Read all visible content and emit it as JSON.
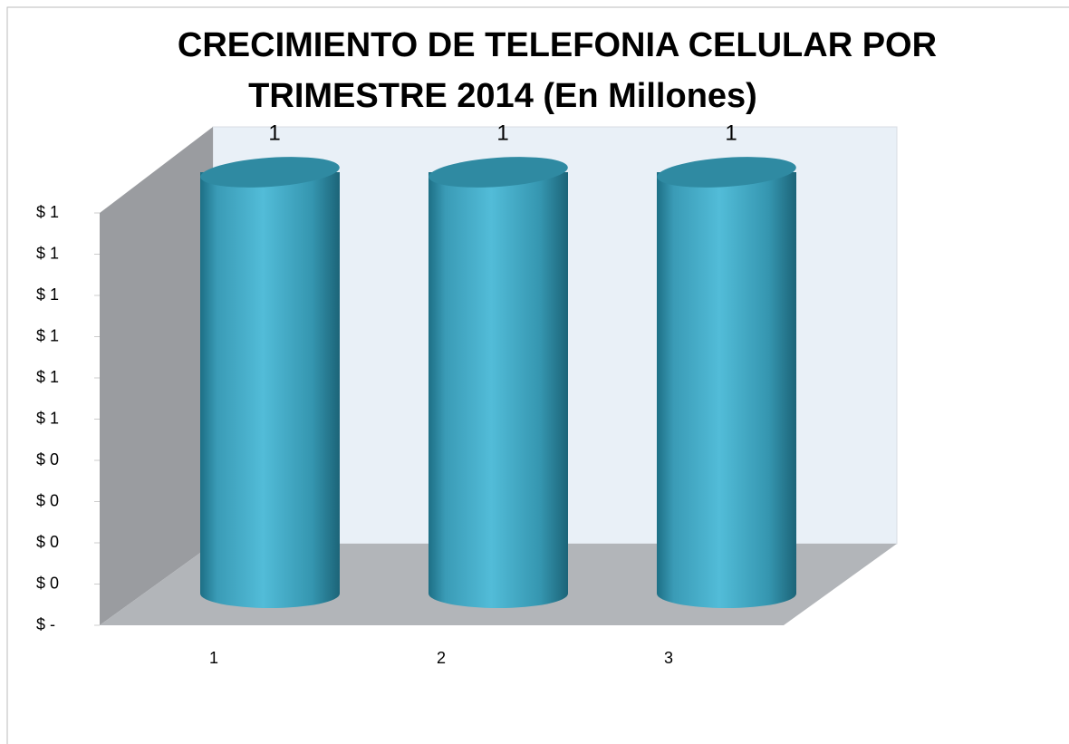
{
  "chart_data": {
    "type": "bar3d",
    "title": [
      "CRECIMIENTO DE TELEFONIA CELULAR POR",
      "TRIMESTRE 2014 (En Millones)"
    ],
    "categories": [
      1,
      2,
      3
    ],
    "values": [
      1,
      1,
      1
    ],
    "color": "#4bb3cf",
    "ylim": [
      0,
      1
    ],
    "yticks": [
      {
        "value": 0,
        "label": "$ -"
      },
      {
        "value": 0.1,
        "label": "$ 0"
      },
      {
        "value": 0.2,
        "label": "$ 0"
      },
      {
        "value": 0.3,
        "label": "$ 0"
      },
      {
        "value": 0.4,
        "label": "$ 0"
      },
      {
        "value": 0.5,
        "label": "$ 1"
      },
      {
        "value": 0.6,
        "label": "$ 1"
      },
      {
        "value": 0.7,
        "label": "$ 1"
      },
      {
        "value": 0.8,
        "label": "$ 1"
      },
      {
        "value": 0.9,
        "label": "$ 1"
      },
      {
        "value": 1.0,
        "label": "$ 1"
      }
    ]
  }
}
